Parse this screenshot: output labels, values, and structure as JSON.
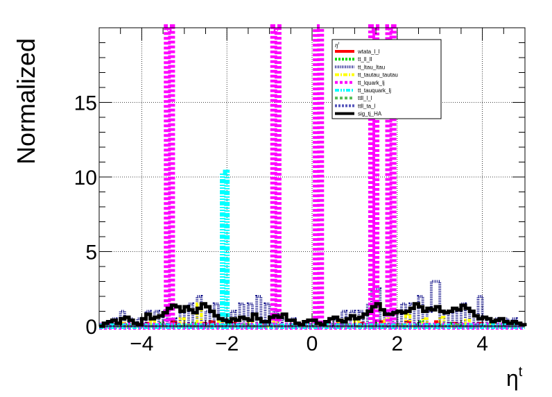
{
  "chart_data": {
    "type": "step-histogram",
    "title": "",
    "xlabel": "η",
    "xlabel_sup": "t",
    "ylabel": "Normalized",
    "xlim": [
      -5,
      5
    ],
    "ylim": [
      0,
      20
    ],
    "xticks": [
      -4,
      -2,
      0,
      2,
      4
    ],
    "xtick_labels": [
      "−4",
      "−2",
      "0",
      "2",
      "4"
    ],
    "yticks": [
      0,
      5,
      10,
      15
    ],
    "ytick_labels": [
      "0",
      "5",
      "10",
      "15"
    ],
    "grid": true,
    "legend": {
      "placement": "top-right",
      "header": "η",
      "header_sup": "t"
    },
    "bin_width": 0.1,
    "series": [
      {
        "name": "wtata_l_l",
        "color": "#ff0000",
        "style": "solid",
        "bins": [
          [
            -4.7,
            0.1
          ],
          [
            -3.9,
            0.2
          ],
          [
            -3.3,
            0.3
          ],
          [
            -2.6,
            0.2
          ],
          [
            -2.4,
            0.3
          ],
          [
            -1.9,
            0.2
          ],
          [
            -1.2,
            0.2
          ],
          [
            -0.5,
            0.1
          ],
          [
            0.6,
            0.2
          ],
          [
            1.1,
            0.2
          ],
          [
            1.6,
            0.3
          ],
          [
            2.2,
            0.3
          ],
          [
            2.9,
            0.3
          ],
          [
            3.3,
            0.2
          ],
          [
            3.9,
            0.2
          ],
          [
            4.5,
            0.1
          ]
        ]
      },
      {
        "name": "tt_ll_ll",
        "color": "#00dd00",
        "style": "dotted",
        "bins": [
          [
            -4.4,
            0.1
          ],
          [
            -3.6,
            0.2
          ],
          [
            -2.8,
            0.2
          ],
          [
            -2.0,
            0.1
          ],
          [
            -1.0,
            0.2
          ],
          [
            0.4,
            0.1
          ],
          [
            1.4,
            0.2
          ],
          [
            2.5,
            0.3
          ],
          [
            3.2,
            0.2
          ],
          [
            4.1,
            0.1
          ]
        ]
      },
      {
        "name": "tt_ltau_ltau",
        "color": "#000080",
        "style": "dense-dotted",
        "bins": [
          [
            -4.7,
            0.5
          ],
          [
            -4.5,
            1.0
          ],
          [
            -4.3,
            0.5
          ],
          [
            -4.1,
            0.5
          ],
          [
            -3.9,
            1.0
          ],
          [
            -3.7,
            1.0
          ],
          [
            -3.5,
            1.0
          ],
          [
            -3.3,
            0.5
          ],
          [
            -3.1,
            1.0
          ],
          [
            -2.9,
            1.5
          ],
          [
            -2.7,
            2.0
          ],
          [
            -2.5,
            1.0
          ],
          [
            -2.3,
            1.5
          ],
          [
            -2.1,
            0.5
          ],
          [
            -1.9,
            1.0
          ],
          [
            -1.7,
            1.5
          ],
          [
            -1.5,
            1.5
          ],
          [
            -1.3,
            2.0
          ],
          [
            -1.1,
            1.5
          ],
          [
            -0.9,
            1.0
          ],
          [
            -0.7,
            0.5
          ],
          [
            -0.5,
            0.5
          ],
          [
            0.5,
            0.5
          ],
          [
            0.7,
            1.0
          ],
          [
            0.9,
            1.0
          ],
          [
            1.1,
            1.0
          ],
          [
            1.3,
            1.5
          ],
          [
            1.4,
            2.5
          ],
          [
            1.5,
            2.5
          ],
          [
            1.7,
            1.0
          ],
          [
            1.9,
            1.0
          ],
          [
            2.1,
            1.5
          ],
          [
            2.3,
            1.5
          ],
          [
            2.5,
            2.0
          ],
          [
            2.7,
            1.0
          ],
          [
            2.8,
            3.0
          ],
          [
            2.9,
            3.0
          ],
          [
            3.1,
            1.0
          ],
          [
            3.3,
            1.0
          ],
          [
            3.5,
            1.5
          ],
          [
            3.7,
            1.0
          ],
          [
            3.9,
            2.0
          ],
          [
            4.1,
            0.5
          ],
          [
            4.3,
            0.5
          ],
          [
            4.5,
            0.5
          ],
          [
            4.7,
            0.5
          ]
        ]
      },
      {
        "name": "tt_tautau_tautau",
        "color": "#ffff00",
        "style": "dash-dot",
        "bins": [
          [
            -4.5,
            0.2
          ],
          [
            -3.8,
            0.4
          ],
          [
            -3.1,
            0.5
          ],
          [
            -2.7,
            1.5
          ],
          [
            -2.2,
            0.3
          ],
          [
            -1.5,
            0.4
          ],
          [
            -0.9,
            0.3
          ],
          [
            0.6,
            0.3
          ],
          [
            1.0,
            0.4
          ],
          [
            1.7,
            0.5
          ],
          [
            2.2,
            0.8
          ],
          [
            2.6,
            0.5
          ],
          [
            3.0,
            0.6
          ],
          [
            3.6,
            0.4
          ],
          [
            4.2,
            0.2
          ]
        ]
      },
      {
        "name": "tt_lquark_lj",
        "color": "#ff00ff",
        "style": "dashed",
        "bins": [
          [
            -3.4,
            20.0
          ],
          [
            -0.9,
            20.0
          ],
          [
            0.1,
            20.0
          ],
          [
            1.4,
            20.0
          ],
          [
            1.8,
            20.0
          ]
        ]
      },
      {
        "name": "tt_tauquark_lj",
        "color": "#00ffff",
        "style": "dash-dot-dot",
        "bins": [
          [
            -2.1,
            10.3
          ]
        ]
      },
      {
        "name": "ttll_l_l",
        "color": "#55bb55",
        "style": "dashed",
        "bins": [
          [
            -4.2,
            0.1
          ],
          [
            -3.0,
            0.1
          ],
          [
            -1.6,
            0.1
          ],
          [
            0.8,
            0.1
          ],
          [
            2.0,
            0.1
          ],
          [
            3.4,
            0.1
          ]
        ]
      },
      {
        "name": "ttll_ta_l",
        "color": "#5555bb",
        "style": "dotted",
        "bins": [
          [
            -4.0,
            0.1
          ],
          [
            -2.6,
            0.1
          ],
          [
            -1.1,
            0.1
          ],
          [
            0.7,
            0.1
          ],
          [
            2.4,
            0.1
          ],
          [
            3.8,
            0.1
          ]
        ]
      },
      {
        "name": "sig_tj_HA",
        "color": "#000000",
        "style": "solid",
        "values": [
          0.0,
          0.2,
          0.3,
          0.4,
          0.2,
          0.5,
          0.6,
          0.4,
          0.2,
          0.1,
          0.5,
          0.8,
          0.5,
          0.6,
          0.7,
          0.9,
          1.2,
          1.4,
          1.3,
          1.0,
          1.3,
          1.1,
          0.9,
          1.2,
          1.5,
          1.3,
          1.0,
          0.7,
          0.5,
          0.4,
          0.3,
          0.5,
          0.4,
          0.6,
          0.5,
          0.4,
          0.8,
          0.5,
          0.3,
          0.3,
          0.6,
          0.7,
          0.6,
          0.8,
          0.4,
          0.4,
          0.2,
          0.1,
          0.3,
          0.4,
          0.4,
          0.2,
          0.1,
          0.3,
          0.5,
          0.6,
          0.4,
          0.3,
          0.5,
          0.7,
          0.5,
          0.6,
          0.8,
          1.0,
          1.3,
          1.5,
          1.1,
          0.8,
          0.8,
          0.9,
          1.0,
          0.9,
          1.0,
          1.2,
          1.5,
          1.3,
          1.0,
          1.2,
          1.1,
          1.3,
          1.0,
          0.9,
          1.0,
          1.2,
          1.1,
          1.4,
          1.2,
          1.0,
          0.7,
          0.5,
          0.6,
          0.5,
          0.3,
          0.4,
          0.5,
          0.3,
          0.2,
          0.3,
          0.2,
          0.1
        ]
      }
    ]
  }
}
